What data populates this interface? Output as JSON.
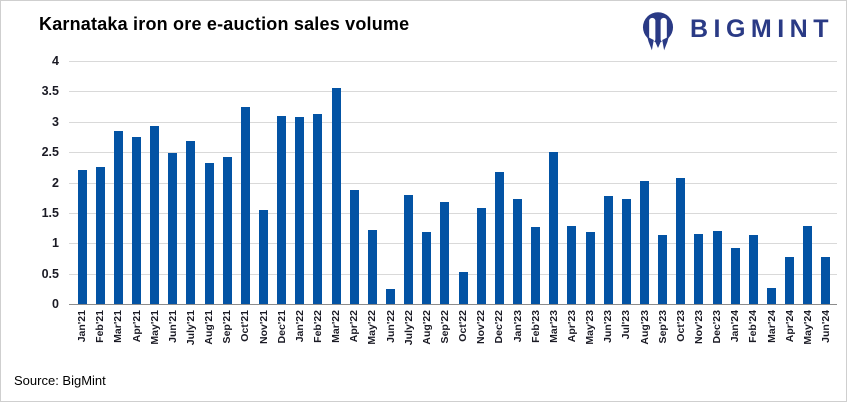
{
  "header": {
    "title": "Karnataka iron ore e-auction sales volume",
    "logo_text": "BIGMINT"
  },
  "footer": {
    "source": "Source: BigMint"
  },
  "colors": {
    "bar": "#0353A4",
    "grid": "#D9D9D9",
    "zero_axis": "#8C8C8C",
    "tick_text": "#1A1A24",
    "logo_navy": "#2A3A85",
    "title_text": "#000000"
  },
  "chart_data": {
    "type": "bar",
    "title": "Karnataka iron ore e-auction sales volume",
    "xlabel": "",
    "ylabel": "",
    "ylim": [
      0,
      4
    ],
    "yticks": [
      0,
      0.5,
      1,
      1.5,
      2,
      2.5,
      3,
      3.5,
      4
    ],
    "grid": true,
    "legend": "none",
    "categories": [
      "Jan'21",
      "Feb'21",
      "Mar'21",
      "Apr'21",
      "May'21",
      "Jun'21",
      "July'21",
      "Aug'21",
      "Sep'21",
      "Oct'21",
      "Nov'21",
      "Dec'21",
      "Jan'22",
      "Feb'22",
      "Mar'22",
      "Apr'22",
      "May'22",
      "Jun'22",
      "July'22",
      "Aug'22",
      "Sep'22",
      "Oct'22",
      "Nov'22",
      "Dec'22",
      "Jan'23",
      "Feb'23",
      "Mar'23",
      "Apr'23",
      "May'23",
      "Jun'23",
      "Jul'23",
      "Aug'23",
      "Sep'23",
      "Oct'23",
      "Nov'23",
      "Dec'23",
      "Jan'24",
      "Feb'24",
      "Mar'24",
      "Apr'24",
      "May'24",
      "Jun'24"
    ],
    "values": [
      2.2,
      2.25,
      2.85,
      2.75,
      2.93,
      2.48,
      2.68,
      2.32,
      2.42,
      3.24,
      1.55,
      3.1,
      3.08,
      3.13,
      3.55,
      1.88,
      1.22,
      0.25,
      1.8,
      1.18,
      1.68,
      0.53,
      1.58,
      2.17,
      1.73,
      1.27,
      2.5,
      1.28,
      1.18,
      1.78,
      1.73,
      2.03,
      1.13,
      2.08,
      1.15,
      1.2,
      0.93,
      1.13,
      0.27,
      0.77,
      1.28,
      0.78
    ]
  }
}
